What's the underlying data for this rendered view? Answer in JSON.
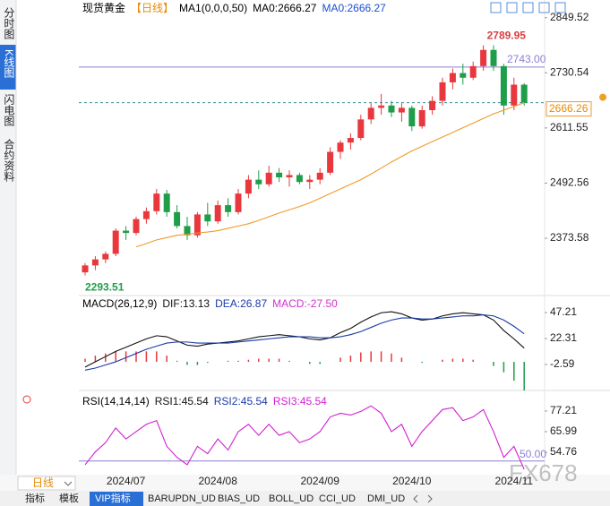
{
  "sidebar_tabs": [
    "分时图",
    "K线图",
    "闪电图",
    "合约资料"
  ],
  "interval": "日线",
  "toolbar_tabs": [
    "指标",
    "模板",
    "VIP指标",
    "BARUPDN_UD",
    "BIAS_UD",
    "BOLL_UD",
    "CCI_UD",
    "DMI_UD"
  ],
  "watermark": "FX678",
  "chart_data": [
    {
      "type": "candlestick",
      "title": "现货黄金",
      "period": "【日线】",
      "indicator": "MA1(0,0,0,50)",
      "ma_labels": [
        "MA0:2666.27",
        "MA0:2666.27"
      ],
      "categories": [
        null,
        null,
        null,
        null,
        "2024/07",
        null,
        null,
        null,
        null,
        null,
        null,
        null,
        null,
        "2024/08",
        null,
        null,
        null,
        null,
        null,
        null,
        null,
        null,
        null,
        "2024/09",
        null,
        null,
        null,
        null,
        null,
        null,
        null,
        null,
        "2024/10",
        null,
        null,
        null,
        null,
        null,
        null,
        null,
        null,
        null,
        "2024/11",
        null
      ],
      "candles": [
        [
          2300,
          2320,
          2293.51,
          2315
        ],
        [
          2315,
          2335,
          2305,
          2328
        ],
        [
          2328,
          2345,
          2320,
          2340
        ],
        [
          2340,
          2395,
          2335,
          2390
        ],
        [
          2390,
          2400,
          2370,
          2385
        ],
        [
          2385,
          2420,
          2380,
          2415
        ],
        [
          2415,
          2440,
          2405,
          2432
        ],
        [
          2432,
          2480,
          2425,
          2470
        ],
        [
          2470,
          2478,
          2420,
          2430
        ],
        [
          2430,
          2445,
          2395,
          2400
        ],
        [
          2400,
          2420,
          2370,
          2380
        ],
        [
          2380,
          2430,
          2375,
          2425
        ],
        [
          2425,
          2450,
          2400,
          2410
        ],
        [
          2410,
          2455,
          2405,
          2445
        ],
        [
          2445,
          2460,
          2420,
          2430
        ],
        [
          2430,
          2480,
          2425,
          2470
        ],
        [
          2470,
          2510,
          2460,
          2500
        ],
        [
          2500,
          2520,
          2480,
          2490
        ],
        [
          2490,
          2530,
          2485,
          2515
        ],
        [
          2515,
          2525,
          2495,
          2505
        ],
        [
          2505,
          2520,
          2485,
          2510
        ],
        [
          2510,
          2515,
          2490,
          2495
        ],
        [
          2495,
          2510,
          2480,
          2500
        ],
        [
          2500,
          2525,
          2490,
          2515
        ],
        [
          2515,
          2570,
          2510,
          2560
        ],
        [
          2560,
          2585,
          2545,
          2580
        ],
        [
          2580,
          2600,
          2565,
          2590
        ],
        [
          2590,
          2640,
          2585,
          2630
        ],
        [
          2630,
          2665,
          2620,
          2655
        ],
        [
          2655,
          2685,
          2640,
          2660
        ],
        [
          2660,
          2670,
          2635,
          2645
        ],
        [
          2645,
          2665,
          2625,
          2655
        ],
        [
          2655,
          2660,
          2605,
          2615
        ],
        [
          2615,
          2660,
          2610,
          2650
        ],
        [
          2650,
          2680,
          2640,
          2670
        ],
        [
          2670,
          2720,
          2660,
          2710
        ],
        [
          2710,
          2740,
          2695,
          2730
        ],
        [
          2730,
          2750,
          2705,
          2720
        ],
        [
          2720,
          2755,
          2715,
          2745
        ],
        [
          2745,
          2789.95,
          2735,
          2780
        ],
        [
          2780,
          2790,
          2735,
          2745
        ],
        [
          2745,
          2750,
          2640,
          2660
        ],
        [
          2660,
          2720,
          2650,
          2705
        ],
        [
          2705,
          2708,
          2660,
          2666.26
        ]
      ],
      "up_color": "#e8383d",
      "down_color": "#1f9e4a",
      "ma": {
        "color": "#f09a28",
        "values": [
          null,
          null,
          null,
          null,
          null,
          2355,
          2362,
          2370,
          2375,
          2380,
          2382,
          2385,
          2387,
          2390,
          2395,
          2400,
          2405,
          2412,
          2420,
          2428,
          2435,
          2442,
          2450,
          2460,
          2470,
          2480,
          2490,
          2500,
          2512,
          2525,
          2538,
          2550,
          2562,
          2572,
          2582,
          2592,
          2602,
          2612,
          2622,
          2632,
          2642,
          2650,
          2658,
          2666.27
        ]
      },
      "ylim": [
        2250,
        2878
      ],
      "yticks": [
        2373.58,
        2492.56,
        2611.55,
        2730.54,
        2849.52
      ],
      "high_label": 2789.95,
      "low_label": 2293.51,
      "hlines": [
        {
          "value": 2743.0,
          "label": "2743.00",
          "color": "#8a7fd0",
          "dashed": false
        },
        {
          "value": 2666.26,
          "label": "2666.26",
          "color": "#3a8f9a",
          "dashed": true
        }
      ]
    },
    {
      "type": "macd",
      "title": "MACD(26,12,9)",
      "series": [
        {
          "name": "DIF:13.13",
          "color": "#111111",
          "values": [
            -5,
            0,
            5,
            10,
            14,
            18,
            22,
            25,
            24,
            20,
            16,
            15,
            17,
            18,
            19,
            20,
            22,
            24,
            25,
            26,
            25,
            24,
            22,
            21,
            23,
            28,
            32,
            38,
            43,
            47,
            48,
            46,
            42,
            40,
            41,
            44,
            46,
            47,
            46,
            45,
            40,
            30,
            22,
            13.13
          ]
        },
        {
          "name": "DEA:26.87",
          "color": "#1a3aa8",
          "values": [
            -8,
            -6,
            -3,
            0,
            4,
            8,
            12,
            15,
            18,
            19,
            19,
            18,
            18,
            18,
            18,
            19,
            20,
            21,
            22,
            23,
            24,
            24,
            24,
            23,
            23,
            24,
            26,
            29,
            33,
            37,
            40,
            42,
            42,
            41,
            41,
            42,
            43,
            44,
            44,
            45,
            44,
            40,
            34,
            26.87
          ]
        }
      ],
      "histogram": {
        "name": "MACD:-27.50",
        "color": "#d030d0",
        "up_color": "#e8383d",
        "down_color": "#1f9e4a",
        "values": [
          3,
          6,
          8,
          10,
          10,
          10,
          10,
          10,
          6,
          1,
          -3,
          -3,
          -1,
          0,
          1,
          1,
          2,
          3,
          3,
          3,
          1,
          0,
          -2,
          -2,
          0,
          4,
          6,
          9,
          10,
          10,
          8,
          4,
          0,
          -1,
          0,
          2,
          3,
          3,
          2,
          0,
          -4,
          -10,
          -18,
          -27.5
        ]
      },
      "ylim": [
        -28.3,
        57.5
      ],
      "yticks": [
        -2.59,
        22.31,
        47.21
      ]
    },
    {
      "type": "rsi",
      "title": "RSI(14,14,14)",
      "series": [
        {
          "name": "RSI1:45.54",
          "color": "#111111"
        },
        {
          "name": "RSI2:45.54",
          "color": "#1a3aa8"
        },
        {
          "name": "RSI3:45.54",
          "color": "#d020d0",
          "values": [
            48,
            55,
            60,
            68,
            62,
            66,
            70,
            72,
            58,
            52,
            48,
            58,
            54,
            62,
            56,
            66,
            70,
            64,
            70,
            64,
            66,
            60,
            62,
            66,
            74,
            76,
            75,
            77,
            80,
            76,
            66,
            70,
            58,
            66,
            72,
            78,
            79,
            72,
            74,
            78,
            66,
            52,
            58,
            45.54
          ]
        }
      ],
      "ylim": [
        42.6,
        84
      ],
      "yticks": [
        54.76,
        65.99,
        77.21
      ],
      "hlines": [
        {
          "value": 50,
          "label": "50.00",
          "color": "#8a7fd0"
        }
      ]
    }
  ]
}
